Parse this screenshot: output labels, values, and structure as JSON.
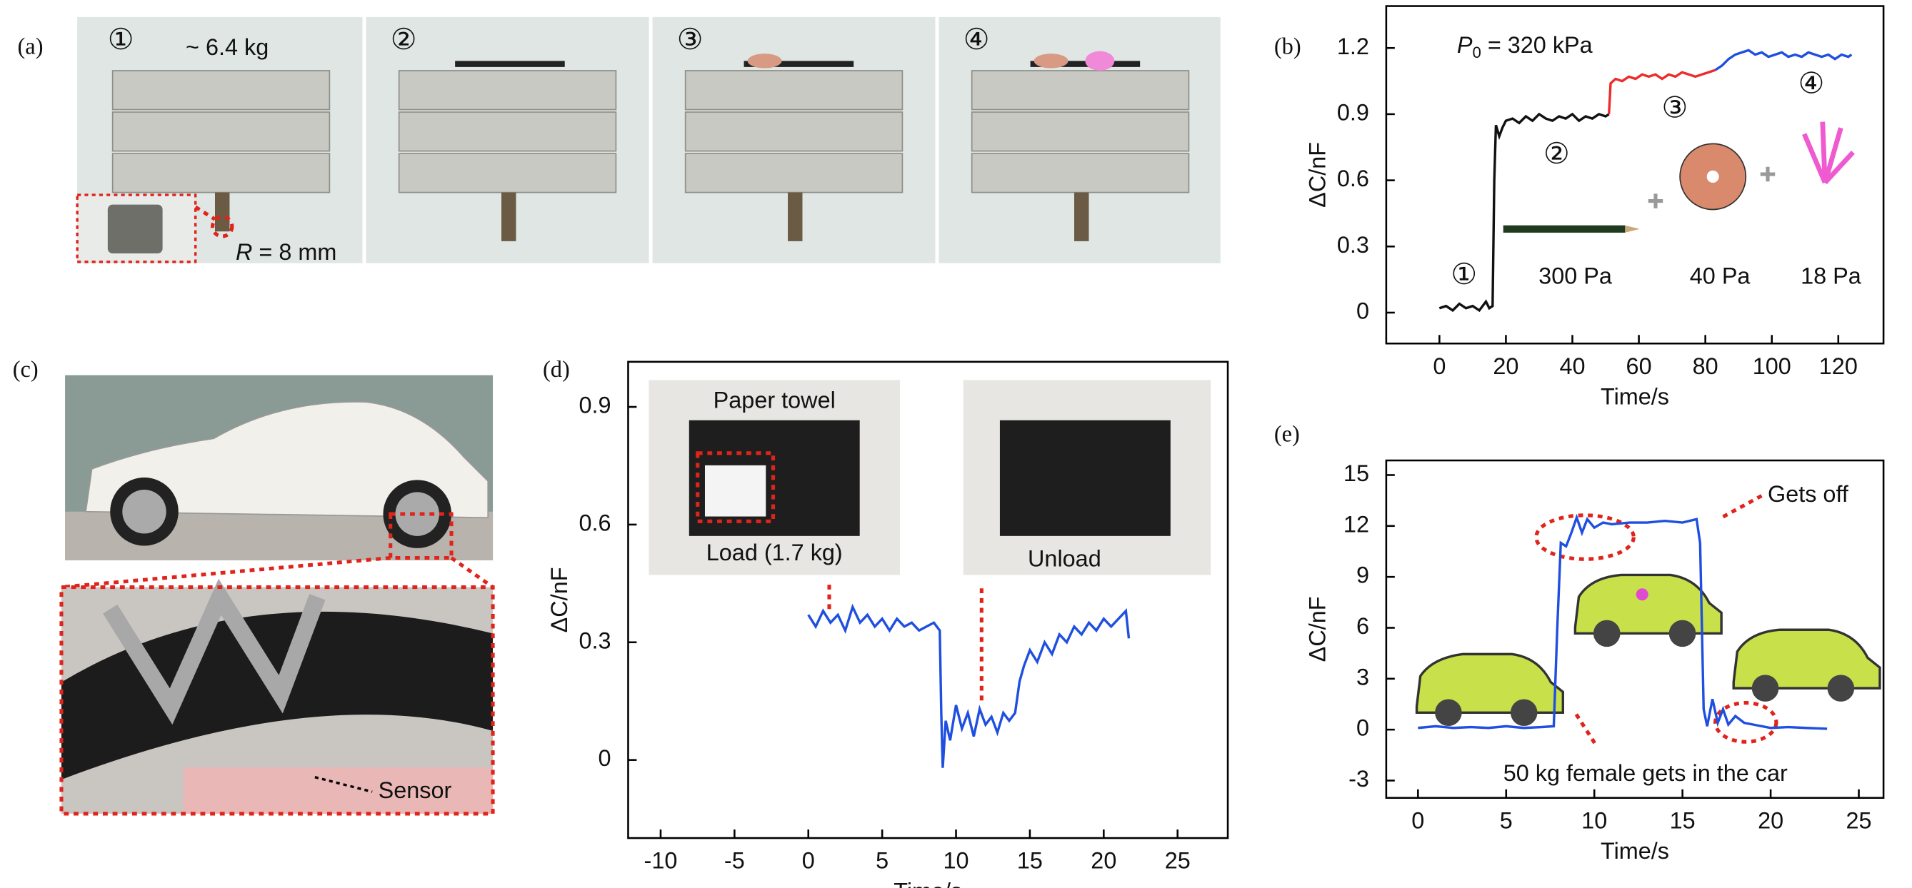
{
  "panel_labels": [
    "(a)",
    "(b)",
    "(c)",
    "(d)",
    "(e)"
  ],
  "panel_a": {
    "steps": [
      "①",
      "②",
      "③",
      "④"
    ],
    "mass": "~ 6.4 kg",
    "radius": {
      "symbol": "R",
      "text": " = 8 mm"
    }
  },
  "panel_c": {
    "sensor": "Sensor"
  },
  "chart_data": [
    {
      "type": "line",
      "xlabel": "Time/s",
      "ylabel": "ΔC/nF",
      "xlim": [
        -16,
        133.6
      ],
      "ylim": [
        -0.14,
        1.39
      ],
      "xticks": [
        0,
        20,
        40,
        60,
        80,
        100,
        120
      ],
      "yticks": [
        0,
        0.3,
        0.6,
        0.9,
        1.2
      ],
      "annotations": {
        "pressure": {
          "symbol": "P",
          "sub": "0",
          "text": " = 320 kPa"
        },
        "steps": [
          "①",
          "②",
          "③",
          "④"
        ],
        "pressures": [
          "300 Pa",
          "40 Pa",
          "18 Pa"
        ]
      },
      "series": [
        {
          "color": "#111111",
          "x": [
            0,
            2,
            4,
            6,
            8,
            10,
            12,
            14,
            15,
            16,
            16.5,
            17,
            18,
            19,
            20,
            22,
            24,
            26,
            28,
            30,
            32,
            34,
            36,
            38,
            40,
            42,
            44,
            46,
            48,
            50,
            51
          ],
          "values": [
            0.02,
            0.03,
            0.01,
            0.04,
            0.02,
            0.03,
            0.01,
            0.05,
            0.02,
            0.03,
            0.6,
            0.85,
            0.8,
            0.84,
            0.87,
            0.88,
            0.86,
            0.89,
            0.87,
            0.9,
            0.88,
            0.87,
            0.89,
            0.88,
            0.9,
            0.87,
            0.89,
            0.88,
            0.9,
            0.89,
            0.9
          ]
        },
        {
          "color": "#ee2a2a",
          "x": [
            51,
            51.5,
            53,
            55,
            57,
            59,
            61,
            63,
            65,
            67,
            69,
            71,
            73,
            75,
            77,
            79,
            81,
            83
          ],
          "values": [
            0.9,
            1.04,
            1.06,
            1.05,
            1.07,
            1.06,
            1.08,
            1.07,
            1.08,
            1.06,
            1.08,
            1.07,
            1.09,
            1.08,
            1.07,
            1.08,
            1.09,
            1.1
          ]
        },
        {
          "color": "#1f4fe0",
          "x": [
            83,
            85,
            87,
            89,
            91,
            93,
            95,
            97,
            99,
            101,
            103,
            105,
            107,
            109,
            111,
            113,
            115,
            117,
            119,
            121,
            123,
            124
          ],
          "values": [
            1.1,
            1.12,
            1.15,
            1.17,
            1.18,
            1.19,
            1.17,
            1.18,
            1.16,
            1.17,
            1.18,
            1.16,
            1.17,
            1.16,
            1.18,
            1.17,
            1.16,
            1.17,
            1.15,
            1.17,
            1.16,
            1.17
          ]
        }
      ]
    },
    {
      "type": "line",
      "xlabel": "Time/s",
      "ylabel": "ΔC/nF",
      "xlim": [
        -12.2,
        28.4
      ],
      "ylim": [
        -0.199,
        1.015
      ],
      "xticks": [
        -10,
        -5,
        0,
        5,
        10,
        15,
        20,
        25
      ],
      "yticks": [
        0,
        0.3,
        0.6,
        0.9
      ],
      "annotations": [
        "Paper towel",
        "Load (1.7 kg)",
        "Unload"
      ],
      "color": "#1f4fe0",
      "x": [
        0,
        0.5,
        1,
        1.5,
        2,
        2.5,
        3,
        3.5,
        4,
        4.5,
        5,
        5.5,
        6,
        6.5,
        7,
        7.5,
        8,
        8.5,
        8.9,
        9.0,
        9.1,
        9.3,
        9.6,
        10,
        10.4,
        10.8,
        11.2,
        11.6,
        12,
        12.4,
        12.8,
        13.2,
        13.6,
        14,
        14.3,
        14.6,
        15,
        15.5,
        16,
        16.5,
        17,
        17.5,
        18,
        18.5,
        19,
        19.5,
        20,
        20.5,
        21,
        21.5,
        21.7
      ],
      "values": [
        0.37,
        0.34,
        0.38,
        0.35,
        0.37,
        0.33,
        0.39,
        0.35,
        0.37,
        0.34,
        0.36,
        0.33,
        0.36,
        0.34,
        0.35,
        0.33,
        0.34,
        0.35,
        0.33,
        0.12,
        -0.02,
        0.1,
        0.05,
        0.14,
        0.08,
        0.12,
        0.06,
        0.13,
        0.09,
        0.11,
        0.07,
        0.12,
        0.1,
        0.12,
        0.2,
        0.24,
        0.28,
        0.25,
        0.3,
        0.27,
        0.32,
        0.3,
        0.34,
        0.32,
        0.35,
        0.33,
        0.36,
        0.34,
        0.36,
        0.38,
        0.31
      ]
    },
    {
      "type": "line",
      "xlabel": "Time/s",
      "ylabel": "ΔC/nF",
      "xlim": [
        -1.8,
        26.4
      ],
      "ylim": [
        -4.02,
        15.86
      ],
      "xticks": [
        0,
        5,
        10,
        15,
        20,
        25
      ],
      "yticks": [
        -3,
        0,
        3,
        6,
        9,
        12,
        15
      ],
      "annotations": [
        "Gets off",
        "50 kg female gets in the car"
      ],
      "color": "#1f4fe0",
      "x": [
        0,
        1,
        2,
        3,
        4,
        5,
        6,
        7,
        7.7,
        7.9,
        8.1,
        8.4,
        8.7,
        9,
        9.3,
        9.6,
        10,
        10.5,
        11,
        12,
        13,
        14,
        15,
        15.8,
        16,
        16.2,
        16.4,
        16.7,
        17,
        17.3,
        17.6,
        18,
        18.5,
        19,
        20,
        21,
        22,
        23.2
      ],
      "values": [
        0.1,
        0.2,
        0.1,
        0.15,
        0.1,
        0.2,
        0.1,
        0.15,
        0.2,
        6,
        11,
        10.8,
        11.6,
        12.5,
        11.6,
        12.4,
        11.9,
        12.2,
        12.1,
        12.2,
        12.2,
        12.3,
        12.2,
        12.4,
        11,
        1.2,
        0.2,
        1.8,
        0.4,
        1.2,
        0.3,
        0.8,
        0.4,
        0.3,
        0.1,
        0.15,
        0.1,
        0.05
      ]
    }
  ]
}
